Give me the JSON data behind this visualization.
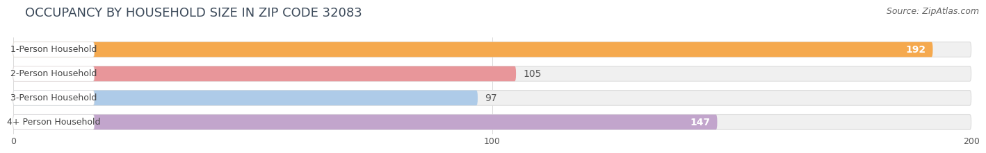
{
  "title": "OCCUPANCY BY HOUSEHOLD SIZE IN ZIP CODE 32083",
  "source": "Source: ZipAtlas.com",
  "categories": [
    "1-Person Household",
    "2-Person Household",
    "3-Person Household",
    "4+ Person Household"
  ],
  "values": [
    192,
    105,
    97,
    147
  ],
  "bar_colors": [
    "#F5A94E",
    "#E8969A",
    "#AECBE8",
    "#C2A5CC"
  ],
  "bar_bg_color": "#F0F0F0",
  "label_bg_color": "#FFFFFF",
  "xlim": [
    0,
    200
  ],
  "xticks": [
    0,
    100,
    200
  ],
  "label_colors": [
    "#FFFFFF",
    "#555555",
    "#555555",
    "#FFFFFF"
  ],
  "title_fontsize": 13,
  "source_fontsize": 9,
  "value_fontsize": 10,
  "tick_fontsize": 9,
  "category_fontsize": 9,
  "bar_height": 0.62,
  "fig_bg_color": "#FFFFFF",
  "row_bg_color": "#FFFFFF",
  "border_color": "#DDDDDD"
}
